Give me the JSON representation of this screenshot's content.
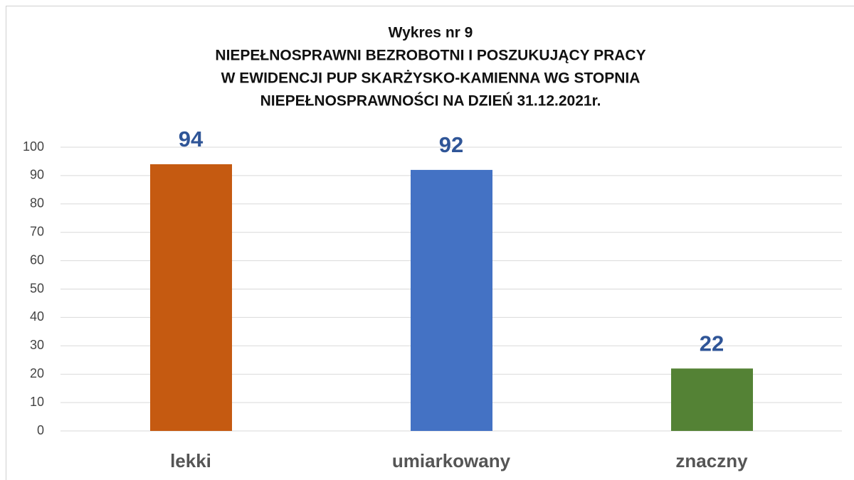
{
  "chart_data": {
    "type": "bar",
    "title": [
      "Wykres nr 9",
      "NIEPEŁNOSPRAWNI BEZROBOTNI I POSZUKUJĄCY PRACY",
      "W EWIDENCJI PUP SKARŻYSKO-KAMIENNA WG STOPNIA",
      "NIEPEŁNOSPRAWNOŚCI NA DZIEŃ 31.12.2021r."
    ],
    "categories": [
      "lekki",
      "umiarkowany",
      "znaczny"
    ],
    "values": [
      94,
      92,
      22
    ],
    "colors": [
      "#c55a11",
      "#4472c4",
      "#548235"
    ],
    "ylim": [
      0,
      100
    ],
    "yticks": [
      0,
      10,
      20,
      30,
      40,
      50,
      60,
      70,
      80,
      90,
      100
    ],
    "grid": true
  }
}
